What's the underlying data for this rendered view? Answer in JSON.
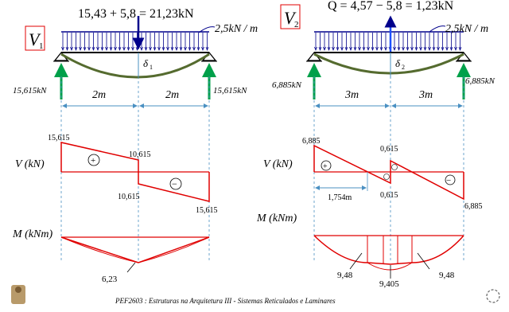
{
  "left": {
    "panel_label": "V",
    "panel_sub": "1",
    "load_title": "15,43 + 5,8 = 21,23kN",
    "dist_load": "2,5kN / m",
    "deflection": "δ",
    "deflection_sub": "1",
    "reaction_left": "15,615kN",
    "reaction_right": "15,615kN",
    "span_left": "2m",
    "span_right": "2m",
    "shear": {
      "v_top_left": "15,615",
      "v_mid_upper": "10,615",
      "v_mid_lower": "10,615",
      "v_bottom_right": "15,615",
      "sign_pos": "+",
      "sign_neg": "−"
    },
    "moment": {
      "max": "6,23"
    }
  },
  "right": {
    "panel_label": "V",
    "panel_sub": "2",
    "load_title": "Q = 4,57 − 5,8 = 1,23kN",
    "dist_load": "2,5kN / m",
    "deflection": "δ",
    "deflection_sub": "2",
    "reaction_left": "6,885kN",
    "reaction_right": "6,885kN",
    "span_left": "3m",
    "span_right": "3m",
    "shear": {
      "v_top_left": "6,885",
      "v_mid_upper": "0,615",
      "v_mid_lower": "0,615",
      "v_bottom_right": "6,885",
      "zero_dist": "1,754m",
      "sign_pos": "+",
      "sign_neg": "−"
    },
    "moment": {
      "left": "9,48",
      "mid": "9,405",
      "right": "9,48"
    }
  },
  "axis_labels": {
    "shear": "V (kN)",
    "moment": "M (kNm)"
  },
  "footer": "PEF2603 : Estruturas na Arquitetura III - Sistemas Reticulados e Laminares",
  "colors": {
    "load": "#00008b",
    "shear": "#e00000",
    "deflection": "#556b2f",
    "reaction": "#00a04a",
    "dimension": "#4a90c2"
  }
}
